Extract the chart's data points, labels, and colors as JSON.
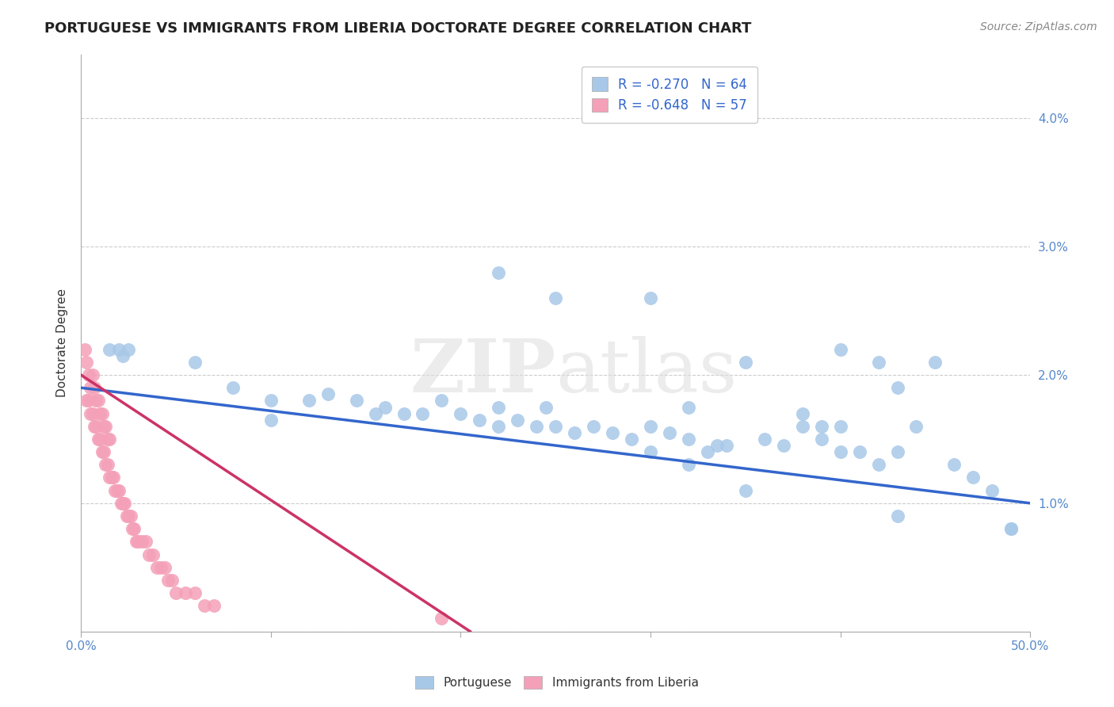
{
  "title": "PORTUGUESE VS IMMIGRANTS FROM LIBERIA DOCTORATE DEGREE CORRELATION CHART",
  "source": "Source: ZipAtlas.com",
  "ylabel": "Doctorate Degree",
  "xlim": [
    0.0,
    0.5
  ],
  "ylim": [
    0.0,
    0.045
  ],
  "color_blue": "#a8c8e8",
  "color_pink": "#f4a0b8",
  "line_color_blue": "#3366cc",
  "line_color_pink": "#cc3366",
  "watermark": "ZIPatlas",
  "R1": -0.27,
  "N1": 64,
  "R2": -0.648,
  "N2": 57,
  "background_color": "#ffffff",
  "grid_color": "#cccccc",
  "title_fontsize": 13,
  "label_fontsize": 11,
  "tick_color": "#5588cc",
  "legend_text_color": "#3366cc",
  "blue_line_x0": 0.0,
  "blue_line_y0": 0.019,
  "blue_line_x1": 0.5,
  "blue_line_y1": 0.01,
  "pink_line_x0": 0.0,
  "pink_line_y0": 0.02,
  "pink_line_x1": 0.205,
  "pink_line_y1": 0.0,
  "blue_x": [
    0.015,
    0.02,
    0.022,
    0.025,
    0.06,
    0.08,
    0.1,
    0.1,
    0.12,
    0.13,
    0.145,
    0.155,
    0.16,
    0.17,
    0.18,
    0.19,
    0.2,
    0.21,
    0.22,
    0.23,
    0.24,
    0.245,
    0.25,
    0.26,
    0.27,
    0.28,
    0.29,
    0.3,
    0.31,
    0.32,
    0.33,
    0.335,
    0.34,
    0.36,
    0.37,
    0.38,
    0.39,
    0.4,
    0.41,
    0.42,
    0.43,
    0.44,
    0.22,
    0.25,
    0.3,
    0.32,
    0.35,
    0.38,
    0.39,
    0.4,
    0.42,
    0.43,
    0.45,
    0.46,
    0.47,
    0.48,
    0.49,
    0.22,
    0.3,
    0.32,
    0.35,
    0.4,
    0.43,
    0.49
  ],
  "blue_y": [
    0.022,
    0.022,
    0.0215,
    0.022,
    0.021,
    0.019,
    0.018,
    0.0165,
    0.018,
    0.0185,
    0.018,
    0.017,
    0.0175,
    0.017,
    0.017,
    0.018,
    0.017,
    0.0165,
    0.016,
    0.0165,
    0.016,
    0.0175,
    0.016,
    0.0155,
    0.016,
    0.0155,
    0.015,
    0.016,
    0.0155,
    0.015,
    0.014,
    0.0145,
    0.0145,
    0.015,
    0.0145,
    0.016,
    0.015,
    0.016,
    0.014,
    0.013,
    0.014,
    0.016,
    0.028,
    0.026,
    0.026,
    0.0175,
    0.021,
    0.017,
    0.016,
    0.022,
    0.021,
    0.019,
    0.021,
    0.013,
    0.012,
    0.011,
    0.008,
    0.0175,
    0.014,
    0.013,
    0.011,
    0.014,
    0.009,
    0.008
  ],
  "pink_x": [
    0.002,
    0.003,
    0.004,
    0.005,
    0.006,
    0.007,
    0.008,
    0.009,
    0.01,
    0.011,
    0.012,
    0.013,
    0.014,
    0.015,
    0.003,
    0.004,
    0.005,
    0.006,
    0.007,
    0.008,
    0.009,
    0.01,
    0.011,
    0.012,
    0.013,
    0.014,
    0.015,
    0.016,
    0.017,
    0.018,
    0.019,
    0.02,
    0.021,
    0.022,
    0.023,
    0.024,
    0.025,
    0.026,
    0.027,
    0.028,
    0.029,
    0.03,
    0.032,
    0.034,
    0.036,
    0.038,
    0.04,
    0.042,
    0.044,
    0.046,
    0.048,
    0.05,
    0.055,
    0.06,
    0.065,
    0.07,
    0.19
  ],
  "pink_y": [
    0.022,
    0.021,
    0.02,
    0.019,
    0.02,
    0.019,
    0.018,
    0.018,
    0.017,
    0.017,
    0.016,
    0.016,
    0.015,
    0.015,
    0.018,
    0.018,
    0.017,
    0.017,
    0.016,
    0.016,
    0.015,
    0.015,
    0.014,
    0.014,
    0.013,
    0.013,
    0.012,
    0.012,
    0.012,
    0.011,
    0.011,
    0.011,
    0.01,
    0.01,
    0.01,
    0.009,
    0.009,
    0.009,
    0.008,
    0.008,
    0.007,
    0.007,
    0.007,
    0.007,
    0.006,
    0.006,
    0.005,
    0.005,
    0.005,
    0.004,
    0.004,
    0.003,
    0.003,
    0.003,
    0.002,
    0.002,
    0.001
  ]
}
